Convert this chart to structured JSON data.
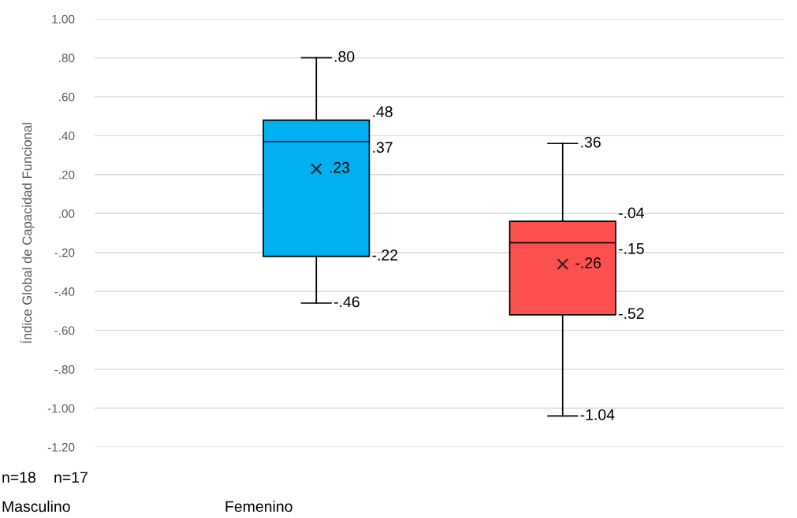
{
  "chart_data": {
    "type": "box",
    "ylabel": "Índice Global de Capacidad Funcional",
    "categories": [
      null,
      null
    ],
    "boxes": [
      {
        "low": -0.46,
        "q1": -0.22,
        "median": 0.37,
        "q3": 0.48,
        "high": 0.8,
        "mean": 0.23
      },
      {
        "low": -1.04,
        "q1": -0.52,
        "median": -0.15,
        "q3": -0.04,
        "high": 0.36,
        "mean": -0.26
      }
    ],
    "colors": [
      "#00b0f0",
      "#ff5050"
    ],
    "ylim": [
      -1.2,
      1.0
    ],
    "yticks": [
      {
        "value": 1.0,
        "label": "1.00"
      },
      {
        "value": 0.8,
        "label": ".80"
      },
      {
        "value": 0.6,
        "label": ".60"
      },
      {
        "value": 0.4,
        "label": ".40"
      },
      {
        "value": 0.2,
        "label": ".20"
      },
      {
        "value": 0.0,
        "label": ".00"
      },
      {
        "value": -0.2,
        "label": "-.20"
      },
      {
        "value": -0.4,
        "label": "-.40"
      },
      {
        "value": -0.6,
        "label": "-.60"
      },
      {
        "value": -0.8,
        "label": "-.80"
      },
      {
        "value": -1.0,
        "label": "-1.00"
      },
      {
        "value": -1.2,
        "label": "-1.20"
      }
    ],
    "grid": "y",
    "marker": "cross",
    "value_labels": [
      {
        "high": ".80",
        "q3": ".48",
        "median": ".37",
        "q1": "-.22",
        "low": "-.46",
        "mean": ".23"
      },
      {
        "high": ".36",
        "q3": "-.04",
        "median": "-.15",
        "q1": "-.52",
        "low": "-1.04",
        "mean": "-.26"
      }
    ],
    "annotations": [
      "n=18",
      "n=17",
      "Masculino",
      "Femenino"
    ]
  }
}
